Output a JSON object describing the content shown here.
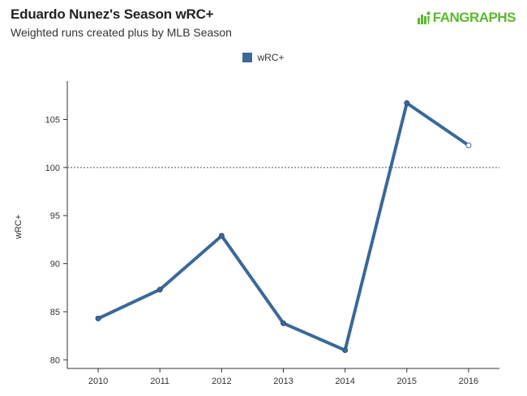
{
  "header": {
    "title": "Eduardo Nunez's Season wRC+",
    "subtitle": "Weighted runs created plus by MLB Season",
    "logo_text": "FANGRAPHS",
    "logo_icon": "fangraphs-logo-icon"
  },
  "colors": {
    "series": "#3b6898",
    "logo": "#5cb82e",
    "axis": "#333333",
    "reference_line": "#555555"
  },
  "chart_data": {
    "type": "line",
    "title": "Eduardo Nunez's Season wRC+",
    "subtitle": "Weighted runs created plus by MLB Season",
    "xlabel": "",
    "ylabel": "wRC+",
    "categories": [
      "2010",
      "2011",
      "2012",
      "2013",
      "2014",
      "2015",
      "2016"
    ],
    "series": [
      {
        "name": "wRC+",
        "values": [
          84.3,
          87.3,
          92.9,
          83.8,
          81.0,
          106.7,
          102.3
        ]
      }
    ],
    "yticks": [
      80,
      85,
      90,
      95,
      100,
      105
    ],
    "ylim": [
      79.1,
      109
    ],
    "reference_line": 100,
    "legend": "top-center",
    "grid": false,
    "last_point_hollow": true
  }
}
